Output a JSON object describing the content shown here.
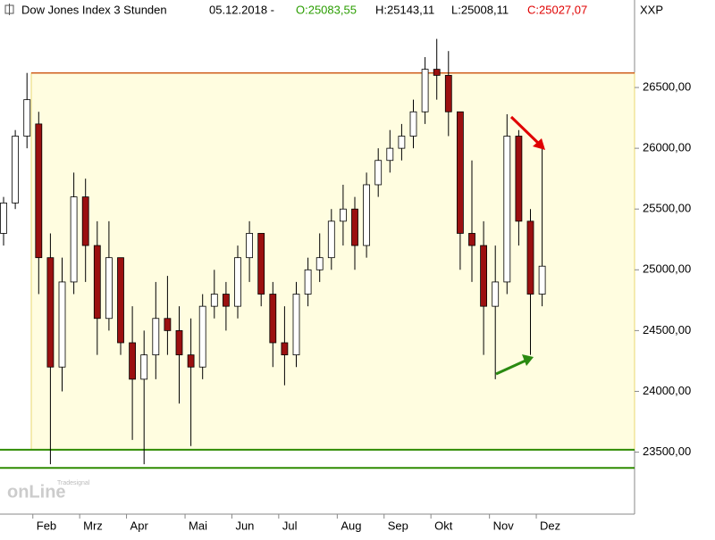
{
  "chart_data": {
    "type": "candlestick",
    "header": {
      "title": "Dow Jones Index 3 Stunden",
      "date": "05.12.2018 -",
      "open": "O:25083,55",
      "high": "H:25143,11",
      "low": "L:25008,11",
      "close": "C:25027,07"
    },
    "symbol": "XXP",
    "watermark": [
      "Tradesignal",
      "onLine"
    ],
    "categories": [
      null,
      null,
      null,
      "Feb",
      null,
      null,
      null,
      "Mrz",
      null,
      null,
      null,
      "Apr",
      null,
      null,
      null,
      null,
      "Mai",
      null,
      null,
      null,
      "Jun",
      null,
      null,
      null,
      "Jul",
      null,
      null,
      null,
      null,
      "Aug",
      null,
      null,
      null,
      "Sep",
      null,
      null,
      null,
      "Okt",
      null,
      null,
      null,
      null,
      "Nov",
      null,
      null,
      null,
      "Dez"
    ],
    "open": [
      25300,
      25550,
      26100,
      26200,
      25100,
      24200,
      24900,
      25600,
      25200,
      24600,
      25100,
      24400,
      24100,
      24300,
      24600,
      24500,
      24300,
      24200,
      24700,
      24800,
      24700,
      25100,
      25300,
      24800,
      24400,
      24300,
      24800,
      25000,
      25100,
      25400,
      25500,
      25200,
      25700,
      25900,
      26000,
      26100,
      26300,
      26650,
      26600,
      26300,
      25300,
      25200,
      24700,
      24900,
      26100,
      25400,
      24800
    ],
    "high": [
      25600,
      26150,
      26620,
      26300,
      25300,
      25100,
      25800,
      25750,
      25400,
      25400,
      25100,
      24700,
      24500,
      24900,
      24950,
      24700,
      24600,
      24800,
      25000,
      24900,
      25200,
      25400,
      25300,
      24900,
      24700,
      24900,
      25100,
      25300,
      25500,
      25700,
      25600,
      25800,
      26000,
      26150,
      26200,
      26400,
      26750,
      26900,
      26800,
      26300,
      25900,
      25400,
      25200,
      26280,
      26150,
      25500,
      26000
    ],
    "low": [
      25200,
      25500,
      26000,
      24800,
      23400,
      24000,
      24800,
      24900,
      24300,
      24500,
      24300,
      23600,
      23400,
      24100,
      24300,
      23900,
      23550,
      24100,
      24600,
      24500,
      24600,
      24900,
      24700,
      24200,
      24050,
      24200,
      24700,
      24900,
      25000,
      25200,
      25000,
      25100,
      25600,
      25800,
      25900,
      26000,
      26200,
      26400,
      26100,
      25000,
      24900,
      24300,
      24100,
      24800,
      25200,
      24300,
      24700
    ],
    "close": [
      25550,
      26100,
      26400,
      25100,
      24200,
      24900,
      25600,
      25200,
      24600,
      25100,
      24400,
      24100,
      24300,
      24600,
      24500,
      24300,
      24200,
      24700,
      24800,
      24700,
      25100,
      25300,
      24800,
      24400,
      24300,
      24800,
      25000,
      25100,
      25400,
      25500,
      25200,
      25700,
      25900,
      26000,
      26100,
      26300,
      26650,
      26600,
      26300,
      25300,
      25200,
      24700,
      24900,
      26100,
      25400,
      24800,
      25030
    ],
    "up_color": "#ffffff",
    "down_color": "#9b1010",
    "zone": [
      23520,
      26620
    ],
    "zone_color": "#fffde0",
    "support_lines": [
      23520,
      23370
    ],
    "support_color": "#2e8b00",
    "ylim": [
      22990,
      27220
    ],
    "yticks": [
      {
        "value": 23500,
        "label": "23500,00"
      },
      {
        "value": 24000,
        "label": "24000,00"
      },
      {
        "value": 24500,
        "label": "24500,00"
      },
      {
        "value": 25000,
        "label": "25000,00"
      },
      {
        "value": 25500,
        "label": "25500,00"
      },
      {
        "value": 26000,
        "label": "26000,00"
      },
      {
        "value": 26500,
        "label": "26500,00"
      }
    ]
  }
}
